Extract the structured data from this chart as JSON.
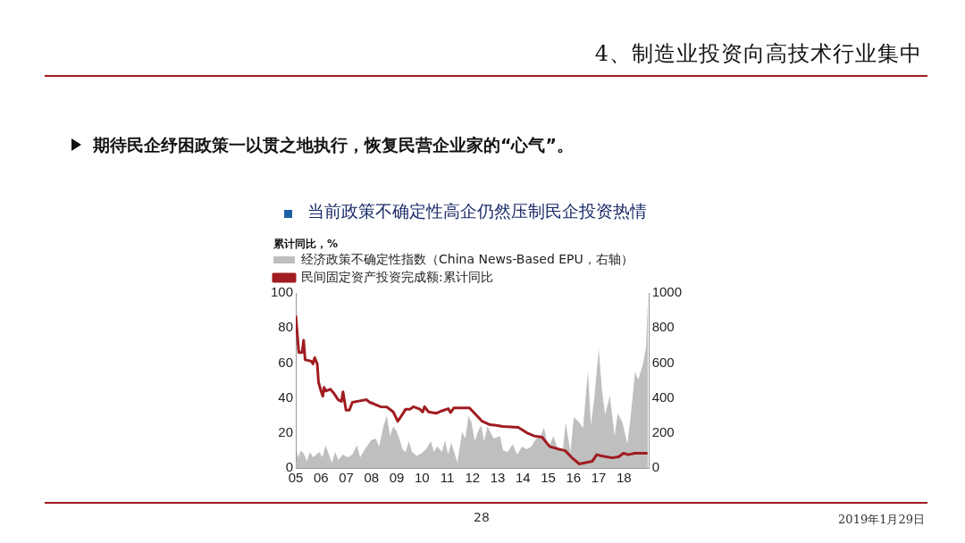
{
  "chart_data": {
    "type": "line",
    "title": "当前政策不确定性高企仍然压制民企投资热情",
    "ylabel": "累计同比，%",
    "annotations": [
      "4、制造业投资向高技术行业集中",
      "期待民企纾困政策一以贯之地执行，恢复民营企业家的“心气”。",
      "28",
      "2019年1月29日"
    ],
    "xlim": [
      2005,
      2019
    ],
    "xticks": [
      {
        "value": 2005,
        "label": "05"
      },
      {
        "value": 2006,
        "label": "06"
      },
      {
        "value": 2007,
        "label": "07"
      },
      {
        "value": 2008,
        "label": "08"
      },
      {
        "value": 2009,
        "label": "09"
      },
      {
        "value": 2010,
        "label": "10"
      },
      {
        "value": 2011,
        "label": "11"
      },
      {
        "value": 2012,
        "label": "12"
      },
      {
        "value": 2013,
        "label": "13"
      },
      {
        "value": 2014,
        "label": "14"
      },
      {
        "value": 2015,
        "label": "15"
      },
      {
        "value": 2016,
        "label": "16"
      },
      {
        "value": 2017,
        "label": "17"
      },
      {
        "value": 2018,
        "label": "18"
      }
    ],
    "ylim": [
      0,
      100
    ],
    "yticks": [
      0,
      20,
      40,
      60,
      80,
      100
    ],
    "y2lim": [
      0,
      1000
    ],
    "y2ticks": [
      0,
      200,
      400,
      600,
      800,
      1000
    ],
    "grid": false,
    "legend": "top left",
    "marker": "none",
    "series": [
      {
        "name": "经济政策不确定性指数（China News-Based EPU，右轴）",
        "type": "area",
        "axis": "y2",
        "color": "#bfbfbf",
        "x": [
          2005.0,
          2005.06,
          2005.12,
          2005.19,
          2005.31,
          2005.44,
          2005.56,
          2005.68,
          2005.81,
          2005.93,
          2006.06,
          2006.18,
          2006.31,
          2006.43,
          2006.56,
          2006.68,
          2006.87,
          2007.05,
          2007.24,
          2007.42,
          2007.55,
          2007.74,
          2007.99,
          2008.17,
          2008.3,
          2008.48,
          2008.61,
          2008.73,
          2008.86,
          2008.98,
          2009.1,
          2009.23,
          2009.35,
          2009.48,
          2009.6,
          2009.79,
          2009.98,
          2010.16,
          2010.35,
          2010.47,
          2010.6,
          2010.79,
          2010.91,
          2011.03,
          2011.16,
          2011.4,
          2011.59,
          2011.72,
          2011.84,
          2011.96,
          2012.09,
          2012.21,
          2012.34,
          2012.46,
          2012.59,
          2012.84,
          2013.09,
          2013.21,
          2013.4,
          2013.59,
          2013.77,
          2013.96,
          2014.15,
          2014.33,
          2014.52,
          2014.7,
          2014.83,
          2015.01,
          2015.2,
          2015.38,
          2015.57,
          2015.69,
          2015.88,
          2016.01,
          2016.19,
          2016.38,
          2016.57,
          2016.69,
          2016.82,
          2017.0,
          2017.13,
          2017.25,
          2017.44,
          2017.63,
          2017.75,
          2017.94,
          2018.13,
          2018.25,
          2018.44,
          2018.56,
          2018.75,
          2018.87,
          2018.95
        ],
        "values": [
          0,
          92,
          61,
          99,
          84,
          38,
          92,
          61,
          76,
          92,
          61,
          130,
          76,
          31,
          92,
          46,
          76,
          61,
          76,
          130,
          61,
          107,
          160,
          168,
          122,
          244,
          298,
          183,
          237,
          214,
          168,
          107,
          92,
          153,
          92,
          69,
          84,
          107,
          153,
          92,
          122,
          92,
          160,
          76,
          145,
          31,
          206,
          168,
          298,
          260,
          153,
          206,
          244,
          153,
          237,
          168,
          183,
          99,
          92,
          137,
          76,
          122,
          107,
          122,
          168,
          183,
          229,
          115,
          183,
          107,
          92,
          260,
          92,
          290,
          267,
          229,
          557,
          244,
          397,
          679,
          443,
          305,
          412,
          183,
          313,
          260,
          137,
          275,
          550,
          504,
          595,
          687,
          980
        ]
      },
      {
        "name": "民间固定资产投资完成额:累计同比",
        "type": "line",
        "color": "#a01c20",
        "x": [
          2005.0,
          2005.12,
          2005.25,
          2005.31,
          2005.37,
          2005.62,
          2005.68,
          2005.75,
          2005.85,
          2005.9,
          2006.0,
          2006.07,
          2006.12,
          2006.19,
          2006.37,
          2006.49,
          2006.68,
          2006.81,
          2006.87,
          2006.99,
          2007.12,
          2007.24,
          2007.49,
          2007.8,
          2007.93,
          2008.1,
          2008.36,
          2008.61,
          2008.86,
          2009.04,
          2009.22,
          2009.35,
          2009.53,
          2009.66,
          2009.91,
          2010.03,
          2010.1,
          2010.26,
          2010.57,
          2010.82,
          2011.04,
          2011.13,
          2011.26,
          2011.63,
          2011.88,
          2012.13,
          2012.38,
          2012.69,
          2012.94,
          2013.19,
          2013.81,
          2014.19,
          2014.44,
          2014.75,
          2015.06,
          2015.43,
          2015.67,
          2015.92,
          2016.23,
          2016.49,
          2016.74,
          2016.92,
          2017.11,
          2017.3,
          2017.54,
          2017.79,
          2017.98,
          2018.17,
          2018.42,
          2018.67,
          2018.93
        ],
        "values": [
          87,
          66,
          66,
          73,
          61.8,
          61,
          59.5,
          63,
          59.5,
          49,
          44,
          41,
          46,
          44,
          45,
          43,
          39,
          38,
          43.5,
          33,
          33,
          37.5,
          38.2,
          39,
          37.5,
          36.6,
          35,
          34.8,
          32,
          26.7,
          30.5,
          33.6,
          33.6,
          35,
          33.6,
          32,
          35,
          32,
          31.3,
          32.8,
          33.9,
          31.7,
          34.3,
          34.3,
          34.3,
          30.5,
          26.7,
          24.7,
          24.4,
          23.7,
          23.2,
          19.8,
          18.3,
          17.6,
          12.2,
          10.7,
          9.9,
          6.1,
          2.3,
          3.1,
          3.8,
          7.6,
          6.9,
          6.4,
          5.8,
          6.4,
          8.4,
          7.6,
          8.4,
          8.4,
          8.4
        ]
      }
    ]
  }
}
